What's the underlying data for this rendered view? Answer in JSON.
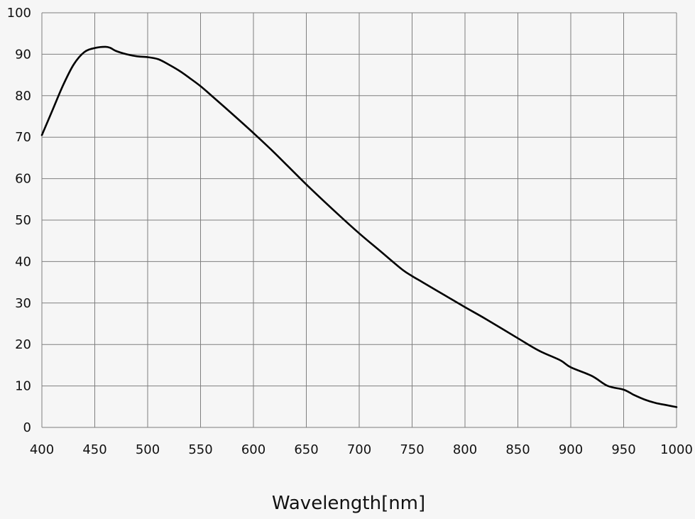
{
  "chart_data": {
    "type": "line",
    "title": "",
    "xlabel": "Wavelength[nm]",
    "ylabel": "",
    "xlim": [
      400,
      1000
    ],
    "ylim": [
      0,
      100
    ],
    "x_ticks": [
      400,
      450,
      500,
      550,
      600,
      650,
      700,
      750,
      800,
      850,
      900,
      950,
      1000
    ],
    "y_ticks": [
      0,
      10,
      20,
      30,
      40,
      50,
      60,
      70,
      80,
      90,
      100
    ],
    "grid": true,
    "legend": "none",
    "line_color": "#000000",
    "grid_color": "#7f7f7f",
    "background_color": "#f6f6f6",
    "series": [
      {
        "x": [
          400,
          410,
          420,
          430,
          440,
          450,
          460,
          465,
          470,
          480,
          490,
          500,
          510,
          520,
          530,
          540,
          550,
          560,
          580,
          600,
          620,
          650,
          680,
          700,
          720,
          740,
          750,
          760,
          780,
          800,
          820,
          850,
          870,
          890,
          900,
          920,
          935,
          950,
          960,
          970,
          980,
          990,
          1000
        ],
        "y": [
          70.5,
          76.5,
          82.5,
          87.5,
          90.5,
          91.5,
          91.8,
          91.5,
          90.8,
          90.0,
          89.5,
          89.3,
          88.8,
          87.5,
          86.0,
          84.2,
          82.3,
          80.1,
          75.6,
          71.0,
          66.2,
          58.6,
          51.4,
          46.8,
          42.5,
          38.2,
          36.5,
          35.0,
          32.0,
          29.0,
          26.1,
          21.5,
          18.5,
          16.2,
          14.5,
          12.4,
          10.0,
          9.1,
          7.8,
          6.7,
          5.9,
          5.4,
          4.9
        ]
      }
    ]
  }
}
